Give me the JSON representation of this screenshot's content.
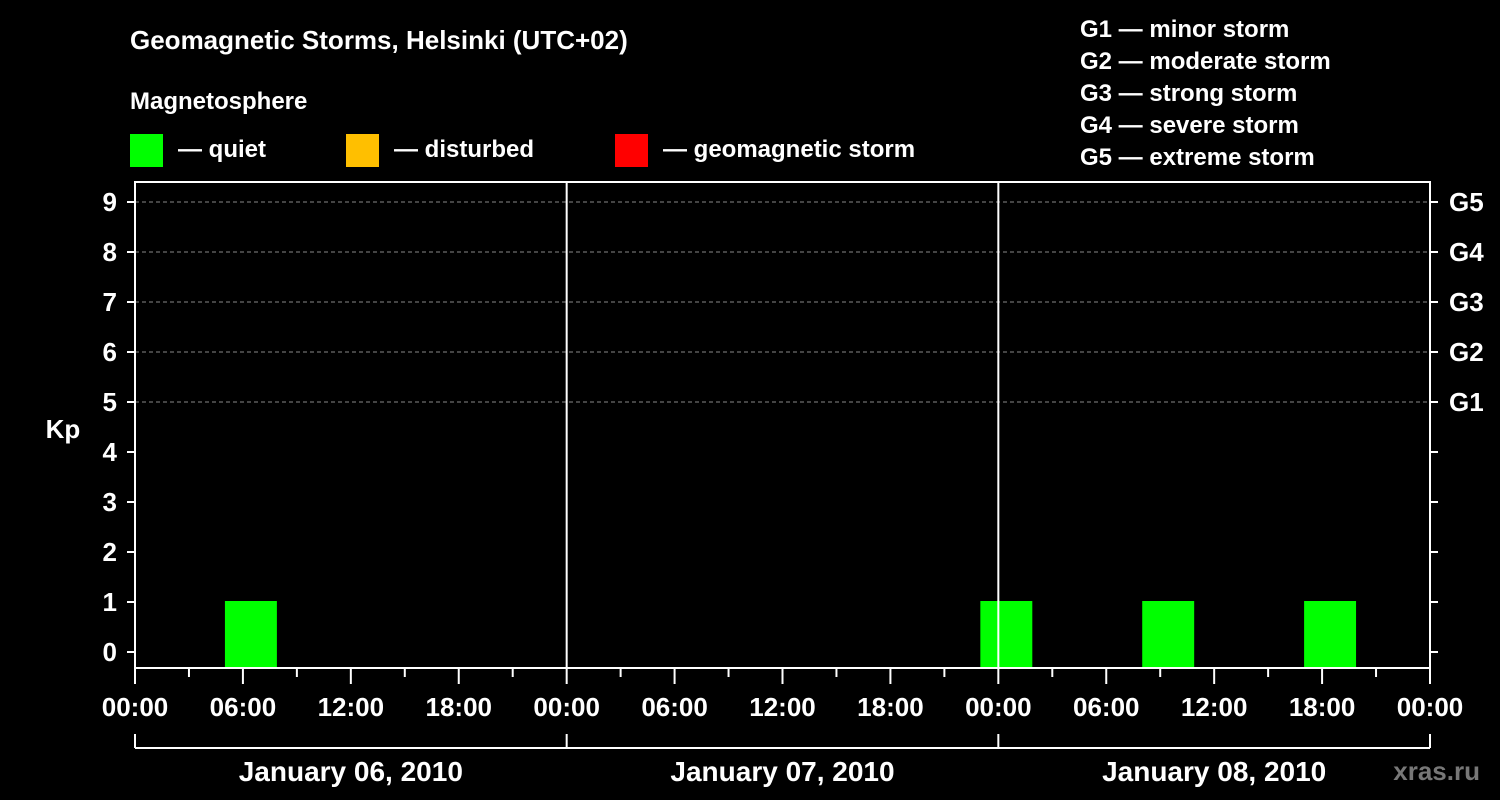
{
  "chart_data": {
    "type": "bar",
    "title": "Geomagnetic Storms, Helsinki (UTC+02)",
    "subtitle": "Magnetosphere",
    "ylabel": "Kp",
    "ylim": [
      0,
      9
    ],
    "y_ticks": [
      "0",
      "1",
      "2",
      "3",
      "4",
      "5",
      "6",
      "7",
      "8",
      "9"
    ],
    "right_axis_labels": [
      {
        "kp": 5,
        "label": "G1"
      },
      {
        "kp": 6,
        "label": "G2"
      },
      {
        "kp": 7,
        "label": "G3"
      },
      {
        "kp": 8,
        "label": "G4"
      },
      {
        "kp": 9,
        "label": "G5"
      }
    ],
    "x_tick_labels": [
      "00:00",
      "06:00",
      "12:00",
      "18:00",
      "00:00",
      "06:00",
      "12:00",
      "18:00",
      "00:00",
      "06:00",
      "12:00",
      "18:00",
      "00:00"
    ],
    "days": [
      "January 06, 2010",
      "January 07, 2010",
      "January 08, 2010"
    ],
    "grid": "dashed horizontal at Kp 5-9",
    "legend": [
      {
        "label": "— quiet",
        "color": "#00ff00"
      },
      {
        "label": "— disturbed",
        "color": "#ffbf00"
      },
      {
        "label": "— geomagnetic storm",
        "color": "#ff0000"
      }
    ],
    "scale_legend": [
      "G1 — minor storm",
      "G2 — moderate storm",
      "G3 — strong storm",
      "G4 — severe storm",
      "G5 — extreme storm"
    ],
    "bars": [
      {
        "day": "January 06, 2010",
        "start": "05:00",
        "end": "08:00",
        "kp": 1,
        "level": "quiet"
      },
      {
        "day": "January 07, 2010",
        "start": "23:00",
        "end": "02:00",
        "kp": 1,
        "level": "quiet"
      },
      {
        "day": "January 08, 2010",
        "start": "08:00",
        "end": "11:00",
        "kp": 1,
        "level": "quiet"
      },
      {
        "day": "January 08, 2010",
        "start": "17:00",
        "end": "20:00",
        "kp": 1,
        "level": "quiet"
      }
    ],
    "colors": {
      "quiet": "#00ff00",
      "disturbed": "#ffbf00",
      "storm": "#ff0000"
    }
  },
  "watermark": "xras.ru"
}
